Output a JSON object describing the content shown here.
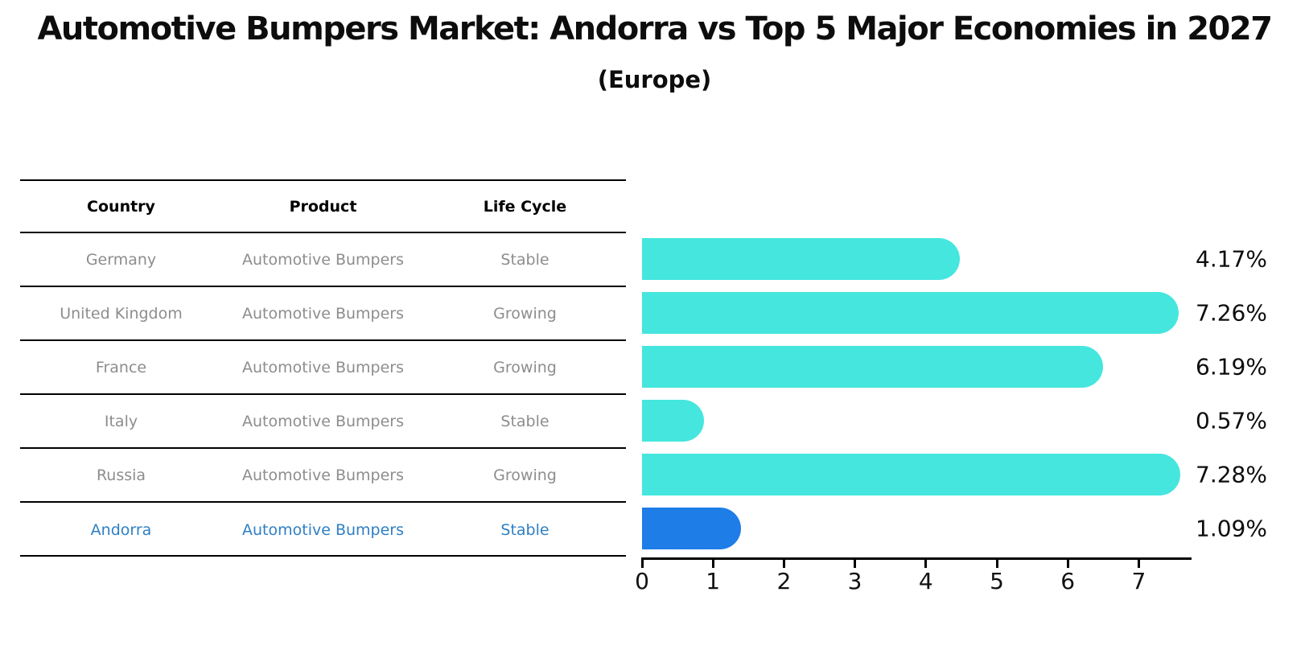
{
  "header": {
    "title": "Automotive Bumpers Market: Andorra vs Top 5 Major Economies in 2027",
    "subtitle": "(Europe)"
  },
  "table": {
    "columns": [
      "Country",
      "Product",
      "Life Cycle"
    ],
    "rows": [
      {
        "country": "Germany",
        "product": "Automotive Bumpers",
        "life_cycle": "Stable",
        "highlight": false
      },
      {
        "country": "United Kingdom",
        "product": "Automotive Bumpers",
        "life_cycle": "Growing",
        "highlight": false
      },
      {
        "country": "France",
        "product": "Automotive Bumpers",
        "life_cycle": "Growing",
        "highlight": false
      },
      {
        "country": "Italy",
        "product": "Automotive Bumpers",
        "life_cycle": "Stable",
        "highlight": false
      },
      {
        "country": "Russia",
        "product": "Automotive Bumpers",
        "life_cycle": "Growing",
        "highlight": false
      },
      {
        "country": "Andorra",
        "product": "Automotive Bumpers",
        "life_cycle": "Stable",
        "highlight": true
      }
    ]
  },
  "chart_data": {
    "type": "bar",
    "orientation": "horizontal",
    "title": "Automotive Bumpers Market: Andorra vs Top 5 Major Economies in 2027 (Europe)",
    "categories": [
      "Germany",
      "United Kingdom",
      "France",
      "Italy",
      "Russia",
      "Andorra"
    ],
    "values": [
      4.17,
      7.26,
      6.19,
      0.57,
      7.28,
      1.09
    ],
    "value_labels": [
      "4.17%",
      "7.26%",
      "6.19%",
      "0.57%",
      "7.28%",
      "1.09%"
    ],
    "x_ticks": [
      0,
      1,
      2,
      3,
      4,
      5,
      6,
      7
    ],
    "xlim": [
      0,
      7.75
    ],
    "grid": false,
    "legend": false,
    "highlight_index": 5,
    "colors": {
      "bar_default": "#45E6DE",
      "bar_highlight": "#1F7DE8",
      "highlight_text": "#2f7fc3",
      "row_text": "#8d8d8d",
      "axis": "#000000"
    }
  }
}
